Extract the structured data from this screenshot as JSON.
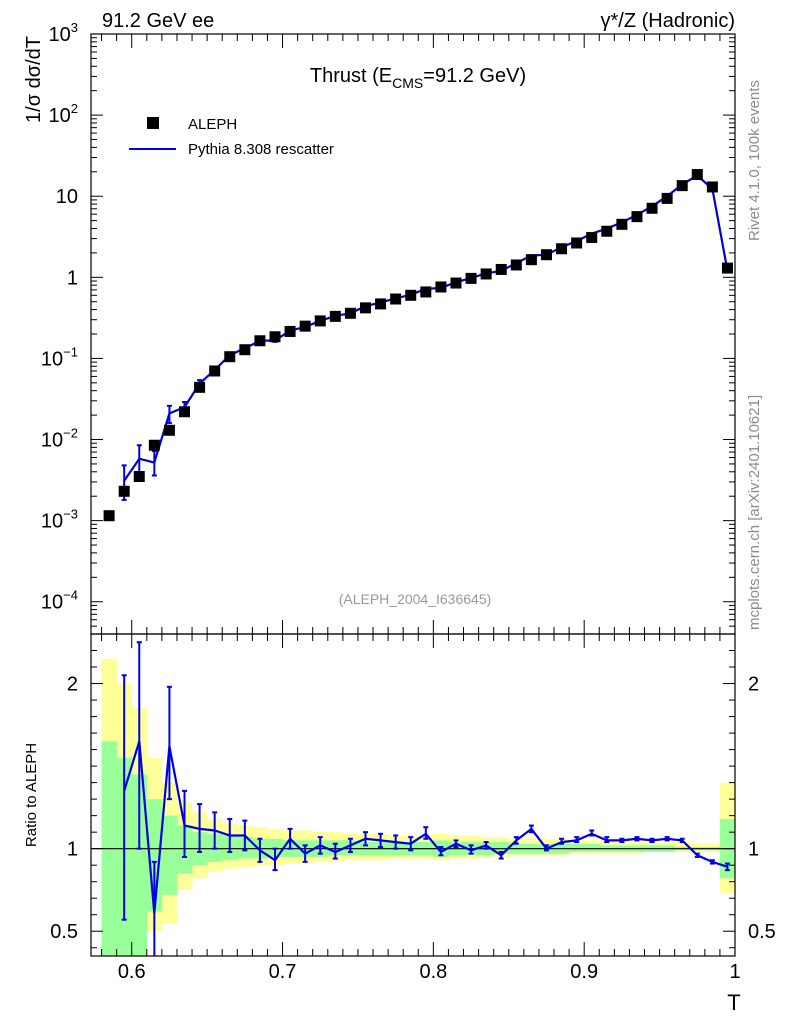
{
  "header": {
    "left": "91.2 GeV ee",
    "right": "γ*/Z (Hadronic)"
  },
  "side_text": {
    "rivet": "Rivet 4.1.0,  100k events",
    "mcplots": "mcplots.cern.ch [arXiv:2401.10621]"
  },
  "chart_data": [
    {
      "type": "scatter",
      "title_main": "Thrust (E",
      "title_sub": "CMS",
      "title_tail": "=91.2 GeV)",
      "analysis_tag": "(ALEPH_2004_I636645)",
      "xlabel": "T",
      "ylabel": "1/σ  dσ/dT",
      "yscale": "log",
      "xlim": [
        0.573,
        1.0
      ],
      "ylim": [
        4e-05,
        1000
      ],
      "legend": [
        {
          "name": "ALEPH",
          "style": "marker",
          "color": "#000000"
        },
        {
          "name": "Pythia 8.308 rescatter",
          "style": "line",
          "color": "#0000e0"
        }
      ],
      "ytick_labels": [
        {
          "value": 0.0001,
          "base": "10",
          "exp": "−4"
        },
        {
          "value": 0.001,
          "base": "10",
          "exp": "−3"
        },
        {
          "value": 0.01,
          "base": "10",
          "exp": "−2"
        },
        {
          "value": 0.1,
          "base": "10",
          "exp": "−1"
        },
        {
          "value": 1,
          "base": "1",
          "exp": ""
        },
        {
          "value": 10,
          "base": "10",
          "exp": ""
        },
        {
          "value": 100,
          "base": "10",
          "exp": "2"
        },
        {
          "value": 1000,
          "base": "10",
          "exp": "3"
        }
      ],
      "series": [
        {
          "name": "ALEPH",
          "x": [
            0.585,
            0.595,
            0.605,
            0.615,
            0.625,
            0.635,
            0.645,
            0.655,
            0.665,
            0.675,
            0.685,
            0.695,
            0.705,
            0.715,
            0.725,
            0.735,
            0.745,
            0.755,
            0.765,
            0.775,
            0.785,
            0.795,
            0.805,
            0.815,
            0.825,
            0.835,
            0.845,
            0.855,
            0.865,
            0.875,
            0.885,
            0.895,
            0.905,
            0.915,
            0.925,
            0.935,
            0.945,
            0.955,
            0.965,
            0.975,
            0.985,
            0.995
          ],
          "y": [
            0.00115,
            0.0023,
            0.0035,
            0.0085,
            0.013,
            0.022,
            0.044,
            0.07,
            0.105,
            0.128,
            0.165,
            0.185,
            0.215,
            0.25,
            0.29,
            0.33,
            0.36,
            0.42,
            0.47,
            0.54,
            0.6,
            0.66,
            0.76,
            0.85,
            0.97,
            1.1,
            1.25,
            1.42,
            1.65,
            1.9,
            2.25,
            2.65,
            3.1,
            3.7,
            4.5,
            5.6,
            7.1,
            9.4,
            13.5,
            18.5,
            13.0,
            1.3
          ]
        },
        {
          "name": "Pythia 8.308 rescatter",
          "x": [
            0.595,
            0.605,
            0.615,
            0.625,
            0.635,
            0.645,
            0.655,
            0.665,
            0.675,
            0.685,
            0.695,
            0.705,
            0.715,
            0.725,
            0.735,
            0.745,
            0.755,
            0.765,
            0.775,
            0.785,
            0.795,
            0.805,
            0.815,
            0.825,
            0.835,
            0.845,
            0.855,
            0.865,
            0.875,
            0.885,
            0.895,
            0.905,
            0.915,
            0.925,
            0.935,
            0.945,
            0.955,
            0.965,
            0.975,
            0.985,
            0.995
          ],
          "y": [
            0.0031,
            0.0058,
            0.0052,
            0.021,
            0.025,
            0.049,
            0.072,
            0.11,
            0.133,
            0.165,
            0.167,
            0.22,
            0.245,
            0.29,
            0.335,
            0.36,
            0.44,
            0.49,
            0.55,
            0.61,
            0.72,
            0.74,
            0.87,
            0.98,
            1.12,
            1.2,
            1.5,
            1.85,
            1.9,
            2.35,
            2.8,
            3.45,
            4.0,
            4.75,
            5.9,
            7.5,
            10.0,
            14.0,
            18.0,
            12.3,
            1.2
          ],
          "err_lo": [
            0.0018,
            0.0036,
            0.0036,
            0.016,
            0.021,
            0.044,
            0.067,
            0.104,
            0.126,
            0.157,
            0.16,
            0.212,
            0.238,
            0.283,
            0.327,
            0.353,
            0.432,
            0.482,
            0.542,
            0.602,
            0.712,
            0.732,
            0.862,
            0.972,
            1.11,
            1.19,
            1.49,
            1.83,
            1.88,
            2.33,
            2.78,
            3.42,
            3.97,
            4.72,
            5.87,
            7.46,
            9.95,
            13.9,
            17.9,
            12.2,
            1.18
          ],
          "err_hi": [
            0.0048,
            0.0085,
            0.0072,
            0.026,
            0.029,
            0.054,
            0.077,
            0.116,
            0.14,
            0.173,
            0.174,
            0.228,
            0.252,
            0.297,
            0.343,
            0.367,
            0.448,
            0.498,
            0.558,
            0.618,
            0.728,
            0.748,
            0.878,
            0.988,
            1.13,
            1.21,
            1.51,
            1.87,
            1.92,
            2.37,
            2.82,
            3.48,
            4.03,
            4.78,
            5.93,
            7.54,
            10.05,
            14.1,
            18.1,
            12.4,
            1.22
          ]
        }
      ]
    },
    {
      "type": "line",
      "ylabel": "Ratio to ALEPH",
      "xlabel": "T",
      "xlim": [
        0.573,
        1.0
      ],
      "ylim": [
        0.35,
        2.3
      ],
      "ytick_labels": [
        "0.5",
        "1",
        "2"
      ],
      "xtick_labels": [
        "0.6",
        "0.7",
        "0.8",
        "0.9",
        "1"
      ],
      "reference": 1.0,
      "bands": {
        "bins": [
          0.58,
          0.59,
          0.6,
          0.61,
          0.62,
          0.63,
          0.64,
          0.65,
          0.66,
          0.67,
          0.68,
          0.69,
          0.7,
          0.71,
          0.72,
          0.73,
          0.74,
          0.75,
          0.76,
          0.77,
          0.78,
          0.79,
          0.8,
          0.81,
          0.82,
          0.83,
          0.84,
          0.85,
          0.86,
          0.87,
          0.88,
          0.89,
          0.9,
          0.91,
          0.92,
          0.93,
          0.94,
          0.95,
          0.96,
          0.97,
          0.98,
          0.99,
          1.0
        ],
        "yellow_lo": [
          0.35,
          0.35,
          0.35,
          0.5,
          0.55,
          0.75,
          0.82,
          0.86,
          0.88,
          0.89,
          0.9,
          0.9,
          0.91,
          0.91,
          0.92,
          0.92,
          0.93,
          0.93,
          0.93,
          0.94,
          0.94,
          0.94,
          0.93,
          0.94,
          0.94,
          0.95,
          0.95,
          0.96,
          0.96,
          0.96,
          0.96,
          0.97,
          0.97,
          0.97,
          0.97,
          0.97,
          0.98,
          0.98,
          0.98,
          0.98,
          0.98,
          0.73
        ],
        "yellow_hi": [
          2.15,
          2.0,
          1.85,
          1.55,
          1.4,
          1.28,
          1.22,
          1.18,
          1.15,
          1.14,
          1.13,
          1.12,
          1.11,
          1.11,
          1.1,
          1.1,
          1.09,
          1.09,
          1.09,
          1.08,
          1.08,
          1.08,
          1.09,
          1.08,
          1.08,
          1.07,
          1.07,
          1.06,
          1.06,
          1.06,
          1.06,
          1.05,
          1.05,
          1.05,
          1.05,
          1.05,
          1.04,
          1.04,
          1.04,
          1.03,
          1.03,
          1.4
        ],
        "green_lo": [
          0.35,
          0.35,
          0.35,
          0.62,
          0.72,
          0.85,
          0.9,
          0.92,
          0.93,
          0.94,
          0.94,
          0.95,
          0.95,
          0.95,
          0.95,
          0.96,
          0.96,
          0.96,
          0.96,
          0.96,
          0.96,
          0.96,
          0.95,
          0.96,
          0.96,
          0.96,
          0.97,
          0.97,
          0.97,
          0.97,
          0.97,
          0.98,
          0.98,
          0.98,
          0.98,
          0.98,
          0.98,
          0.98,
          0.99,
          0.99,
          0.99,
          0.82
        ],
        "green_hi": [
          1.65,
          1.55,
          1.45,
          1.3,
          1.2,
          1.14,
          1.1,
          1.09,
          1.08,
          1.07,
          1.06,
          1.06,
          1.05,
          1.05,
          1.05,
          1.05,
          1.05,
          1.04,
          1.04,
          1.04,
          1.04,
          1.04,
          1.05,
          1.04,
          1.04,
          1.04,
          1.04,
          1.03,
          1.03,
          1.03,
          1.03,
          1.03,
          1.03,
          1.02,
          1.02,
          1.02,
          1.02,
          1.02,
          1.01,
          1.01,
          1.01,
          1.18
        ]
      },
      "series": [
        {
          "name": "Pythia 8.308 rescatter / ALEPH",
          "x": [
            0.595,
            0.605,
            0.615,
            0.625,
            0.635,
            0.645,
            0.655,
            0.665,
            0.675,
            0.685,
            0.695,
            0.705,
            0.715,
            0.725,
            0.735,
            0.745,
            0.755,
            0.765,
            0.775,
            0.785,
            0.795,
            0.805,
            0.815,
            0.825,
            0.835,
            0.845,
            0.855,
            0.865,
            0.875,
            0.885,
            0.895,
            0.905,
            0.915,
            0.925,
            0.935,
            0.945,
            0.955,
            0.965,
            0.975,
            0.985,
            0.995
          ],
          "y": [
            1.35,
            1.65,
            0.61,
            1.62,
            1.14,
            1.12,
            1.11,
            1.08,
            1.08,
            0.99,
            0.93,
            1.06,
            0.97,
            1.02,
            0.98,
            1.02,
            1.06,
            1.05,
            1.04,
            1.03,
            1.09,
            0.98,
            1.03,
            0.99,
            1.02,
            0.96,
            1.05,
            1.12,
            1.0,
            1.04,
            1.05,
            1.09,
            1.05,
            1.05,
            1.06,
            1.05,
            1.06,
            1.05,
            0.96,
            0.92,
            0.89
          ],
          "err_lo": [
            0.57,
            1.0,
            0.3,
            1.3,
            0.95,
            0.98,
            1.0,
            0.98,
            0.99,
            0.92,
            0.87,
            1.0,
            0.92,
            0.97,
            0.94,
            0.98,
            1.02,
            1.01,
            1.0,
            0.99,
            1.06,
            0.96,
            1.01,
            0.97,
            1.0,
            0.94,
            1.03,
            1.1,
            0.99,
            1.03,
            1.04,
            1.08,
            1.04,
            1.04,
            1.05,
            1.04,
            1.05,
            1.04,
            0.95,
            0.91,
            0.87
          ],
          "err_hi": [
            2.05,
            2.25,
            0.92,
            1.98,
            1.35,
            1.27,
            1.22,
            1.18,
            1.17,
            1.06,
            1.0,
            1.12,
            1.02,
            1.07,
            1.03,
            1.06,
            1.1,
            1.09,
            1.08,
            1.07,
            1.13,
            1.01,
            1.05,
            1.02,
            1.04,
            0.98,
            1.07,
            1.14,
            1.02,
            1.06,
            1.07,
            1.11,
            1.07,
            1.06,
            1.07,
            1.06,
            1.07,
            1.06,
            0.97,
            0.93,
            0.91
          ]
        }
      ]
    }
  ]
}
